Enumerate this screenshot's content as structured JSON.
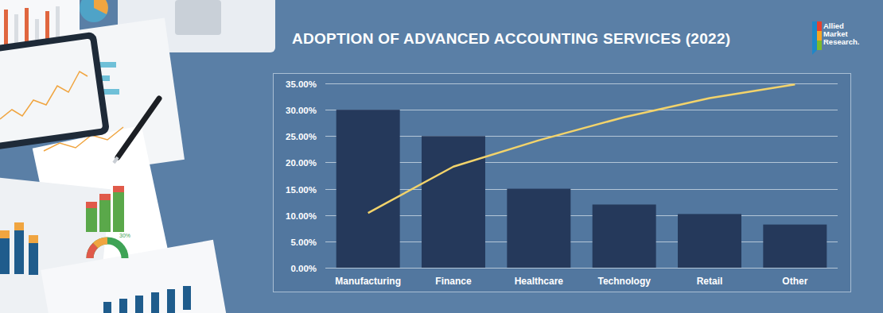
{
  "chart_data": {
    "type": "bar",
    "title": "ADOPTION OF ADVANCED ACCOUNTING SERVICES (2022)",
    "source": [
      "Allied",
      "Market",
      "Research."
    ],
    "categories": [
      "Manufacturing",
      "Finance",
      "Healthcare",
      "Technology",
      "Retail",
      "Other"
    ],
    "series": [
      {
        "type": "bar",
        "color": "#25395b",
        "values": [
          30,
          25,
          15,
          12,
          10.2,
          8.2
        ]
      },
      {
        "type": "line",
        "color": "#f2d36b",
        "values": [
          10.4,
          19.2,
          24.2,
          28.6,
          32.2,
          34.8
        ]
      }
    ],
    "ylim": [
      0,
      35
    ],
    "yticks": [
      {
        "value": 0,
        "label": "0.00%"
      },
      {
        "value": 5,
        "label": "5.00%"
      },
      {
        "value": 10,
        "label": "10.00%"
      },
      {
        "value": 15,
        "label": "15.00%"
      },
      {
        "value": 20,
        "label": "20.00%"
      },
      {
        "value": 25,
        "label": "25.00%"
      },
      {
        "value": 30,
        "label": "30.00%"
      },
      {
        "value": 35,
        "label": "35.00%"
      }
    ],
    "grid": true,
    "illustration_label": "30%"
  }
}
